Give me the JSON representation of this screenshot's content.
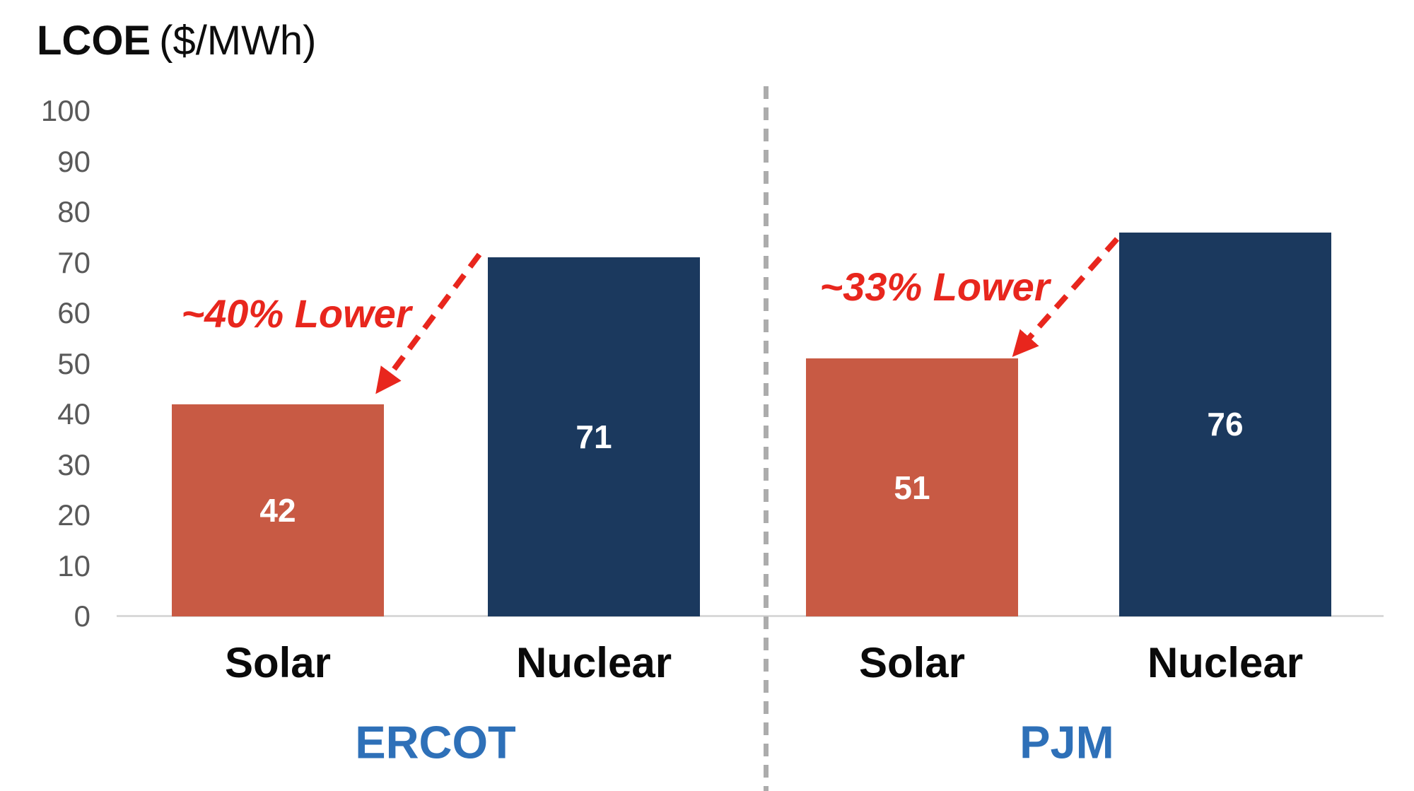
{
  "title": {
    "metric": "LCOE",
    "unit": "($/MWh)"
  },
  "colors": {
    "solar_bar": "#C85A44",
    "nuclear_bar": "#1B395E",
    "annotation_red": "#E8261D",
    "region_label_blue": "#2E70B8",
    "tick_label_gray": "#595959",
    "axis_line_gray": "#D9D9D9",
    "divider_gray": "#ACACAC",
    "bar_value_white": "#FFFFFF"
  },
  "chart_data": {
    "type": "bar",
    "title": "LCOE ($/MWh)",
    "ylabel": "LCOE ($/MWh)",
    "ylim": [
      0,
      100
    ],
    "yticks": [
      0,
      10,
      20,
      30,
      40,
      50,
      60,
      70,
      80,
      90,
      100
    ],
    "grid": false,
    "legend": "none",
    "categories": [
      "Solar",
      "Nuclear"
    ],
    "groups": [
      {
        "label": "ERCOT",
        "values": [
          42,
          71
        ],
        "annotation": {
          "text": "~40% Lower"
        }
      },
      {
        "label": "PJM",
        "values": [
          51,
          76
        ],
        "annotation": {
          "text": "~33% Lower"
        }
      }
    ],
    "series_colors": {
      "Solar": "#C85A44",
      "Nuclear": "#1B395E"
    },
    "notes": "Dashed gray vertical divider separates ERCOT and PJM panels; red dashed arrows point from each Nuclear bar top toward the Solar bar top."
  }
}
